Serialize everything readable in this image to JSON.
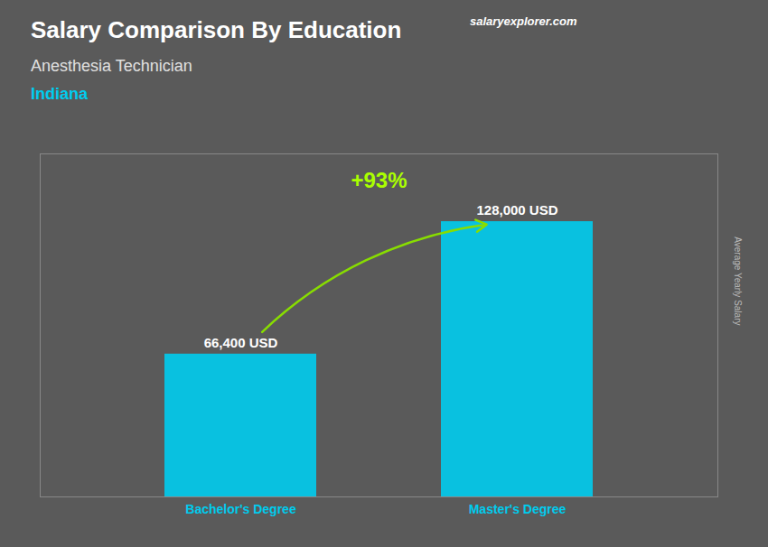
{
  "chart_data": {
    "type": "bar",
    "title": "Salary Comparison By Education",
    "subtitle": "Anesthesia Technician",
    "annotations": [
      "Indiana",
      "+93%",
      "salaryexplorer.com"
    ],
    "ylabel": "Average Yearly Salary",
    "categories": [
      "Bachelor's Degree",
      "Master's Degree"
    ],
    "values": [
      66400,
      128000
    ],
    "value_labels": [
      "66,400 USD",
      "128,000 USD"
    ],
    "data_labels": true,
    "color": "#00ccee",
    "ylim": [
      0,
      159500
    ],
    "yticks": [],
    "tick_labels": "x",
    "grid": false
  }
}
